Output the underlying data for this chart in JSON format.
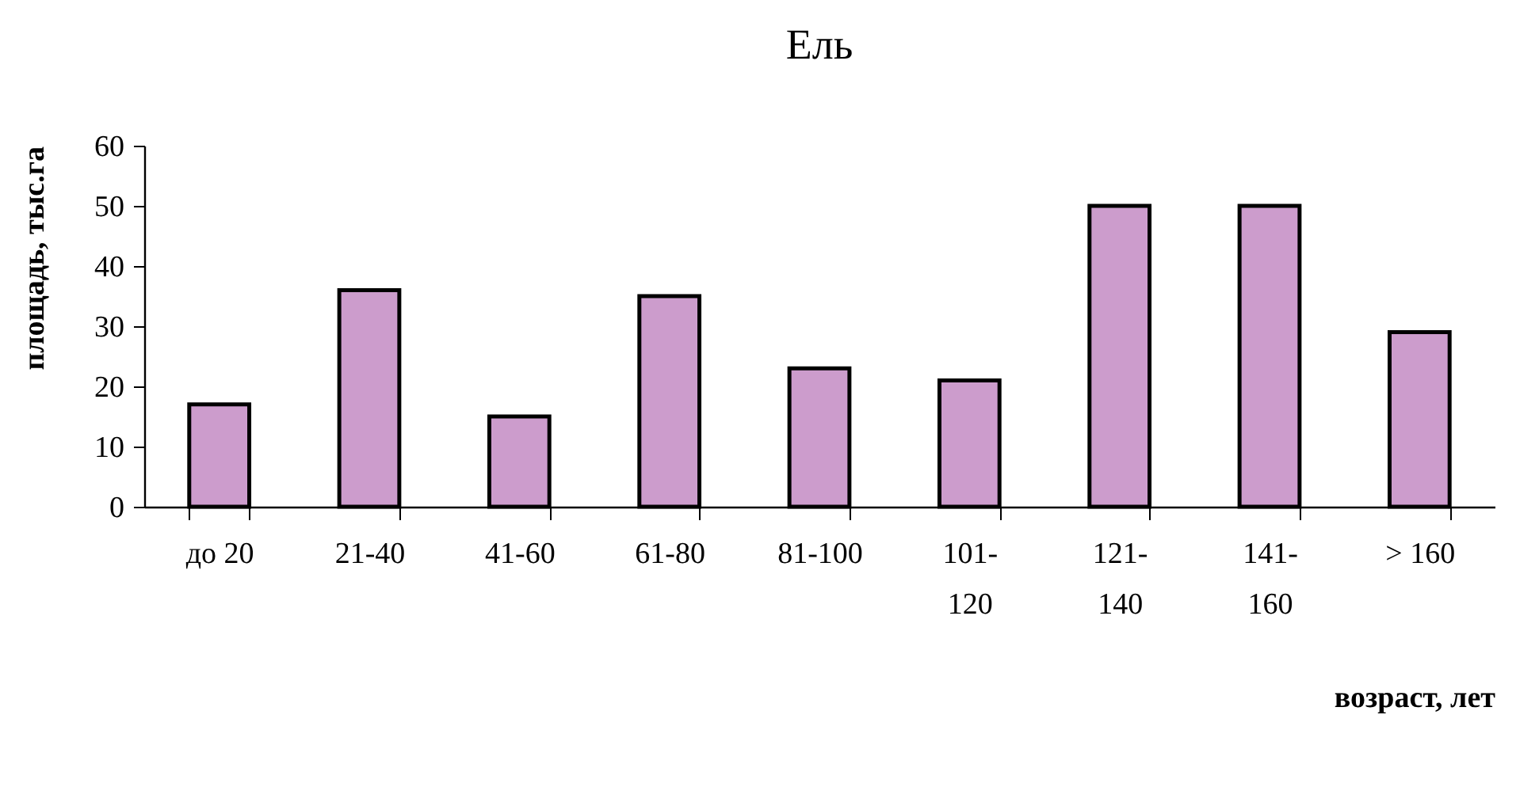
{
  "chart_data": {
    "type": "bar",
    "title": "Ель",
    "xlabel": "возраст, лет",
    "ylabel": "площадь, тыс.га",
    "categories": [
      "до 20",
      "21-40",
      "41-60",
      "61-80",
      "81-100",
      "101-120",
      "121-140",
      "141-160",
      "> 160"
    ],
    "values": [
      17,
      36,
      15,
      35,
      23,
      21,
      50,
      50,
      29
    ],
    "color": "#cc9ccc",
    "ylim": [
      0,
      60
    ],
    "yticks": [
      0,
      10,
      20,
      30,
      40,
      50,
      60
    ],
    "grid": false
  }
}
